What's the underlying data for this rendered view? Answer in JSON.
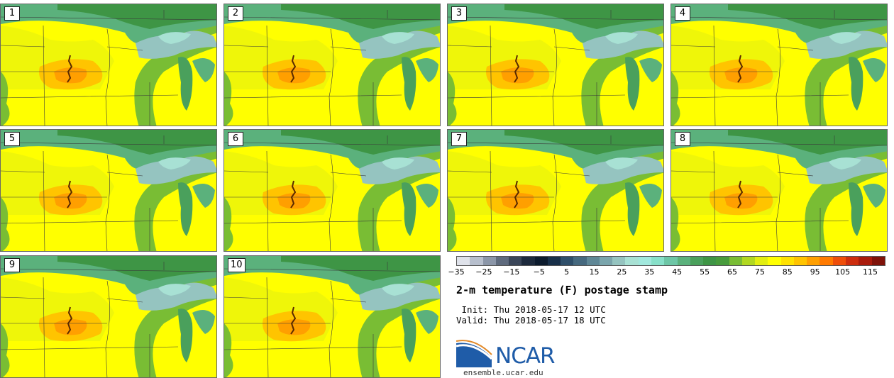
{
  "panels": [
    "1",
    "2",
    "3",
    "4",
    "5",
    "6",
    "7",
    "8",
    "9",
    "10"
  ],
  "colorbar": {
    "tick_labels": [
      "−35",
      "−25",
      "−15",
      "−5",
      "5",
      "15",
      "25",
      "35",
      "45",
      "55",
      "65",
      "75",
      "85",
      "95",
      "105",
      "115"
    ],
    "colors": [
      "#dfe2ea",
      "#b7bfcd",
      "#8b96a8",
      "#5f6b7e",
      "#3a4659",
      "#1d2a3d",
      "#0c1b2e",
      "#18304a",
      "#2f4f6a",
      "#46697f",
      "#5f8796",
      "#7aa5ac",
      "#95c4c0",
      "#a8e1d4",
      "#a1e8dd",
      "#87e0c9",
      "#6dc6a6",
      "#5bb17c",
      "#4aa05c",
      "#3e9545",
      "#479b3c",
      "#79bd34",
      "#b1d820",
      "#e2ee10",
      "#ffff00",
      "#ffe200",
      "#ffc400",
      "#ff9f00",
      "#ff7a00",
      "#ee4e0a",
      "#cd2d0e",
      "#a91b0c",
      "#7f1209"
    ]
  },
  "title": "2-m temperature (F) postage stamp",
  "init_line": " Init: Thu 2018-05-17 12 UTC",
  "valid_line": "Valid: Thu 2018-05-17 18 UTC",
  "logo": {
    "text": "NCAR",
    "url": "ensemble.ucar.edu"
  }
}
